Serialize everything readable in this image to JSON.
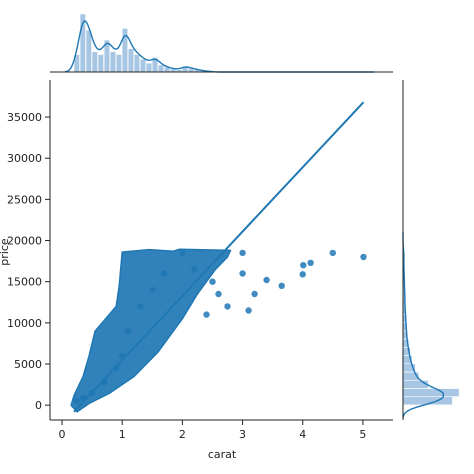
{
  "chart_data": {
    "type": "scatter",
    "xlabel": "carat",
    "ylabel": "price",
    "xlim": [
      -0.2,
      5.5
    ],
    "ylim": [
      -1800,
      39500
    ],
    "xticks": [
      0,
      1,
      2,
      3,
      4,
      5
    ],
    "yticks": [
      0,
      5000,
      10000,
      15000,
      20000,
      25000,
      30000,
      35000
    ],
    "grid": false,
    "regression_line": {
      "x": [
        0.2,
        5.01
      ],
      "y": [
        -800,
        36800
      ]
    },
    "scatter_sample": [
      {
        "x": 0.25,
        "y": 500
      },
      {
        "x": 0.35,
        "y": 900
      },
      {
        "x": 0.5,
        "y": 1500
      },
      {
        "x": 0.7,
        "y": 2800
      },
      {
        "x": 0.9,
        "y": 4500
      },
      {
        "x": 1.0,
        "y": 6000
      },
      {
        "x": 1.1,
        "y": 9000
      },
      {
        "x": 1.3,
        "y": 12000
      },
      {
        "x": 1.5,
        "y": 14000
      },
      {
        "x": 1.7,
        "y": 16000
      },
      {
        "x": 2.0,
        "y": 18500
      },
      {
        "x": 2.2,
        "y": 16500
      },
      {
        "x": 2.4,
        "y": 11000
      },
      {
        "x": 2.5,
        "y": 15000
      },
      {
        "x": 2.6,
        "y": 13500
      },
      {
        "x": 2.75,
        "y": 12000
      },
      {
        "x": 3.0,
        "y": 18500
      },
      {
        "x": 3.0,
        "y": 16000
      },
      {
        "x": 3.1,
        "y": 11500
      },
      {
        "x": 3.2,
        "y": 13500
      },
      {
        "x": 3.4,
        "y": 15200
      },
      {
        "x": 3.65,
        "y": 14500
      },
      {
        "x": 4.0,
        "y": 15900
      },
      {
        "x": 4.01,
        "y": 17000
      },
      {
        "x": 4.13,
        "y": 17300
      },
      {
        "x": 4.5,
        "y": 18500
      },
      {
        "x": 5.01,
        "y": 18000
      }
    ],
    "x_histogram": {
      "bin_width": 0.1,
      "bin_starts": [
        0.2,
        0.3,
        0.4,
        0.5,
        0.6,
        0.7,
        0.8,
        0.9,
        1.0,
        1.1,
        1.2,
        1.3,
        1.4,
        1.5,
        1.6,
        1.7,
        1.8,
        1.9,
        2.0,
        2.1,
        2.2,
        2.3,
        2.4
      ],
      "relative_heights": [
        0.3,
        1.0,
        0.72,
        0.35,
        0.3,
        0.55,
        0.35,
        0.3,
        0.75,
        0.4,
        0.3,
        0.22,
        0.15,
        0.25,
        0.12,
        0.08,
        0.05,
        0.04,
        0.1,
        0.06,
        0.04,
        0.02,
        0.01
      ]
    },
    "y_histogram": {
      "bin_width": 1000,
      "bin_starts": [
        0,
        1000,
        2000,
        3000,
        4000,
        5000,
        6000,
        7000,
        8000,
        9000,
        10000,
        11000,
        12000,
        13000,
        14000,
        15000,
        16000,
        17000,
        18000
      ],
      "relative_heights": [
        0.88,
        1.0,
        0.45,
        0.28,
        0.22,
        0.16,
        0.13,
        0.1,
        0.08,
        0.07,
        0.06,
        0.05,
        0.04,
        0.04,
        0.03,
        0.03,
        0.02,
        0.02,
        0.02
      ]
    },
    "colors": {
      "point": "#1f77b4",
      "line": "#1f77b4",
      "hist_fill": "#a6c6e3",
      "kde_line": "#1f77b4"
    }
  }
}
